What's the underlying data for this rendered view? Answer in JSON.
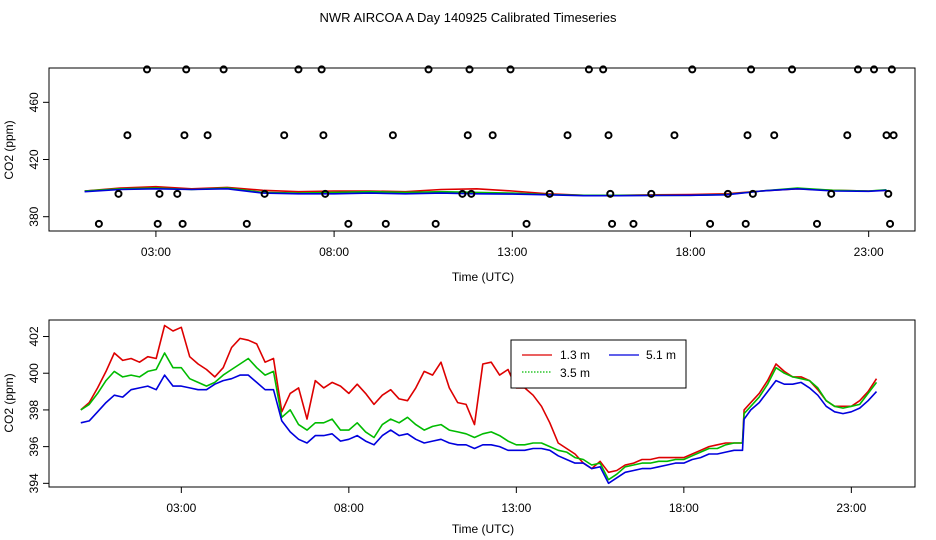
{
  "chart_data": [
    {
      "type": "scatter+line",
      "title": "NWR AIRCOA A  Day 140925  Calibrated Timeseries",
      "xlabel": "Time (UTC)",
      "ylabel": "CO2 (ppm)",
      "xlim": [
        0,
        24.3
      ],
      "ylim": [
        370,
        484
      ],
      "xticks": [
        {
          "v": 3,
          "label": "03:00"
        },
        {
          "v": 8,
          "label": "08:00"
        },
        {
          "v": 13,
          "label": "13:00"
        },
        {
          "v": 18,
          "label": "18:00"
        },
        {
          "v": 23,
          "label": "23:00"
        }
      ],
      "yticks": [
        {
          "v": 380,
          "label": "380"
        },
        {
          "v": 420,
          "label": "420"
        },
        {
          "v": 460,
          "label": "460"
        }
      ],
      "series": [
        {
          "name": "1.3 m",
          "color": "#dd0000",
          "x": [
            1,
            2,
            3,
            4,
            5,
            6,
            7,
            8,
            9,
            10,
            11,
            12,
            13,
            14,
            15,
            16,
            17,
            18,
            19,
            20,
            21,
            22,
            23,
            23.5
          ],
          "y": [
            398,
            400,
            401,
            399.5,
            400.5,
            398.5,
            397.5,
            398,
            398,
            397.5,
            399,
            399.5,
            398,
            396,
            395,
            395,
            395.3,
            395.5,
            396,
            398,
            399.5,
            398.5,
            398,
            398.5
          ]
        },
        {
          "name": "3.5 m",
          "color": "#00bb00",
          "x": [
            1,
            2,
            3,
            4,
            5,
            6,
            7,
            8,
            9,
            10,
            11,
            12,
            13,
            14,
            15,
            16,
            17,
            18,
            19,
            20,
            21,
            22,
            23,
            23.5
          ],
          "y": [
            398,
            399.5,
            400,
            399,
            400,
            397,
            396.5,
            397,
            397.5,
            397,
            397.5,
            397,
            396.5,
            395.5,
            395,
            395,
            395,
            395,
            395.5,
            398,
            400,
            398.5,
            398,
            398.8
          ]
        },
        {
          "name": "5.1 m",
          "color": "#0000dd",
          "x": [
            1,
            2,
            3,
            4,
            5,
            6,
            7,
            8,
            9,
            10,
            11,
            12,
            13,
            14,
            15,
            16,
            17,
            18,
            19,
            20,
            21,
            22,
            23,
            23.5
          ],
          "y": [
            397.5,
            399,
            399.5,
            399,
            399.5,
            396.5,
            396,
            396,
            396.5,
            396,
            396.5,
            396,
            395.8,
            395.3,
            394.7,
            394.7,
            394.8,
            395,
            395.3,
            398,
            399.5,
            398,
            397.8,
            398.5
          ]
        }
      ],
      "points": {
        "color": "#000000",
        "x": [
          1.4,
          1.95,
          2.2,
          2.75,
          3.05,
          3.1,
          3.6,
          3.75,
          3.8,
          3.85,
          4.45,
          4.9,
          5.55,
          6.05,
          6.6,
          7.0,
          7.65,
          7.7,
          7.75,
          8.4,
          9.45,
          9.65,
          10.65,
          10.85,
          11.6,
          11.75,
          11.8,
          11.85,
          12.45,
          12.95,
          13.4,
          14.05,
          14.55,
          15.15,
          15.55,
          15.7,
          15.75,
          15.8,
          16.4,
          16.9,
          17.55,
          18.05,
          18.55,
          19.05,
          19.55,
          19.6,
          19.7,
          19.75,
          20.35,
          20.85,
          21.55,
          21.95,
          22.4,
          22.7,
          23.15,
          23.5,
          23.55,
          23.6,
          23.65,
          23.7
        ],
        "y": [
          375,
          396,
          437,
          483,
          375,
          396,
          396,
          375,
          437,
          483,
          437,
          483,
          375,
          396,
          437,
          483,
          483,
          437,
          396,
          375,
          375,
          437,
          483,
          375,
          396,
          437,
          483,
          396,
          437,
          483,
          375,
          396,
          437,
          483,
          483,
          437,
          396,
          375,
          375,
          396,
          437,
          483,
          375,
          396,
          375,
          437,
          483,
          396,
          437,
          483,
          375,
          396,
          437,
          483,
          483,
          437,
          396,
          375,
          483,
          437
        ]
      }
    },
    {
      "type": "line",
      "title": "",
      "xlabel": "Time (UTC)",
      "ylabel": "CO2 (ppm)",
      "xlim": [
        -0.95,
        24.9
      ],
      "ylim": [
        393.8,
        402.9
      ],
      "xticks": [
        {
          "v": 3,
          "label": "03:00"
        },
        {
          "v": 8,
          "label": "08:00"
        },
        {
          "v": 13,
          "label": "13:00"
        },
        {
          "v": 18,
          "label": "18:00"
        },
        {
          "v": 23,
          "label": "23:00"
        }
      ],
      "yticks": [
        {
          "v": 394,
          "label": "394"
        },
        {
          "v": 396,
          "label": "396"
        },
        {
          "v": 398,
          "label": "398"
        },
        {
          "v": 400,
          "label": "400"
        },
        {
          "v": 402,
          "label": "402"
        }
      ],
      "legend": {
        "position": "top-center",
        "entries": [
          "1.3 m",
          "3.5 m",
          "5.1 m"
        ]
      },
      "series": [
        {
          "name": "1.3 m",
          "color": "#dd0000",
          "x": [
            0,
            0.25,
            0.5,
            0.75,
            1,
            1.25,
            1.5,
            1.75,
            2,
            2.25,
            2.5,
            2.75,
            3,
            3.25,
            3.5,
            3.75,
            4,
            4.25,
            4.5,
            4.75,
            5,
            5.25,
            5.5,
            5.75,
            6,
            6.25,
            6.5,
            6.75,
            7,
            7.25,
            7.5,
            7.75,
            8,
            8.25,
            8.5,
            8.75,
            9,
            9.25,
            9.5,
            9.75,
            10,
            10.25,
            10.5,
            10.75,
            11,
            11.25,
            11.5,
            11.75,
            12,
            12.25,
            12.5,
            12.75,
            13,
            13.25,
            13.5,
            13.75,
            14,
            14.25,
            14.5,
            14.75,
            15,
            15.25,
            15.5,
            15.75,
            16,
            16.25,
            16.5,
            16.75,
            17,
            17.25,
            17.5,
            17.75,
            18,
            18.25,
            18.5,
            18.75,
            19,
            19.25,
            19.5,
            19.75,
            19.8,
            20,
            20.25,
            20.5,
            20.75,
            21,
            21.25,
            21.5,
            21.75,
            22,
            22.25,
            22.5,
            22.75,
            23,
            23.25,
            23.5,
            23.75
          ],
          "y": [
            398,
            398.4,
            399.2,
            400.1,
            401.1,
            400.7,
            400.8,
            400.6,
            400.9,
            400.8,
            402.6,
            402.3,
            402.5,
            400.9,
            400.5,
            400.2,
            399.8,
            400.3,
            401.4,
            401.9,
            401.8,
            401.6,
            400.6,
            400.8,
            397.9,
            398.9,
            399.2,
            397.5,
            399.6,
            399.2,
            399.5,
            399.3,
            398.9,
            399.4,
            398.9,
            398.3,
            398.8,
            399.1,
            398.6,
            398.5,
            399.2,
            400.1,
            399.9,
            400.6,
            399.2,
            398.4,
            398.3,
            397.2,
            400.5,
            400.6,
            399.9,
            400.2,
            399.2,
            399.2,
            398.8,
            398.2,
            397.3,
            396.2,
            395.9,
            395.6,
            395.1,
            394.8,
            395.2,
            394.6,
            394.7,
            395,
            395.1,
            395.3,
            395.3,
            395.4,
            395.4,
            395.4,
            395.4,
            395.6,
            395.8,
            396,
            396.1,
            396.2,
            396.2,
            396.2,
            398,
            398.4,
            398.9,
            399.6,
            400.5,
            400.1,
            399.8,
            399.8,
            399.6,
            399.1,
            398.5,
            398.2,
            398.2,
            398.2,
            398.5,
            399,
            399.7
          ]
        },
        {
          "name": "3.5 m",
          "color": "#00bb00",
          "x": [
            0,
            0.25,
            0.5,
            0.75,
            1,
            1.25,
            1.5,
            1.75,
            2,
            2.25,
            2.5,
            2.75,
            3,
            3.25,
            3.5,
            3.75,
            4,
            4.25,
            4.5,
            4.75,
            5,
            5.25,
            5.5,
            5.75,
            6,
            6.25,
            6.5,
            6.75,
            7,
            7.25,
            7.5,
            7.75,
            8,
            8.25,
            8.5,
            8.75,
            9,
            9.25,
            9.5,
            9.75,
            10,
            10.25,
            10.5,
            10.75,
            11,
            11.25,
            11.5,
            11.75,
            12,
            12.25,
            12.5,
            12.75,
            13,
            13.25,
            13.5,
            13.75,
            14,
            14.25,
            14.5,
            14.75,
            15,
            15.25,
            15.5,
            15.75,
            16,
            16.25,
            16.5,
            16.75,
            17,
            17.25,
            17.5,
            17.75,
            18,
            18.25,
            18.5,
            18.75,
            19,
            19.25,
            19.5,
            19.75,
            19.8,
            20,
            20.25,
            20.5,
            20.75,
            21,
            21.25,
            21.5,
            21.75,
            22,
            22.25,
            22.5,
            22.75,
            23,
            23.25,
            23.5,
            23.75
          ],
          "y": [
            398,
            398.3,
            398.9,
            399.6,
            400.1,
            399.8,
            399.9,
            399.8,
            400.1,
            400.2,
            401.1,
            400.3,
            400.3,
            399.7,
            399.5,
            399.3,
            399.5,
            399.9,
            400.2,
            400.5,
            400.8,
            400.3,
            399.9,
            400.1,
            397.6,
            398,
            397.2,
            396.9,
            397.3,
            397.3,
            397.5,
            396.9,
            396.9,
            397.3,
            396.8,
            396.5,
            397.2,
            397.5,
            397.3,
            397.6,
            397.2,
            396.9,
            397.1,
            397.2,
            396.9,
            396.8,
            396.7,
            396.5,
            396.7,
            396.8,
            396.6,
            396.3,
            396.1,
            396.1,
            396.2,
            396.2,
            396,
            395.8,
            395.7,
            395.4,
            395.3,
            395,
            395.1,
            394.2,
            394.5,
            394.9,
            395,
            395.1,
            395.1,
            395.2,
            395.2,
            395.3,
            395.3,
            395.5,
            395.7,
            395.9,
            395.9,
            396.1,
            396.2,
            396.2,
            397.8,
            398.2,
            398.7,
            399.4,
            400.3,
            400,
            399.8,
            399.7,
            399.6,
            399.2,
            398.5,
            398.2,
            398.1,
            398.2,
            398.3,
            398.9,
            399.5
          ]
        },
        {
          "name": "5.1 m",
          "color": "#0000dd",
          "x": [
            0,
            0.25,
            0.5,
            0.75,
            1,
            1.25,
            1.5,
            1.75,
            2,
            2.25,
            2.5,
            2.75,
            3,
            3.25,
            3.5,
            3.75,
            4,
            4.25,
            4.5,
            4.75,
            5,
            5.25,
            5.5,
            5.75,
            6,
            6.25,
            6.5,
            6.75,
            7,
            7.25,
            7.5,
            7.75,
            8,
            8.25,
            8.5,
            8.75,
            9,
            9.25,
            9.5,
            9.75,
            10,
            10.25,
            10.5,
            10.75,
            11,
            11.25,
            11.5,
            11.75,
            12,
            12.25,
            12.5,
            12.75,
            13,
            13.25,
            13.5,
            13.75,
            14,
            14.25,
            14.5,
            14.75,
            15,
            15.25,
            15.5,
            15.75,
            16,
            16.25,
            16.5,
            16.75,
            17,
            17.25,
            17.5,
            17.75,
            18,
            18.25,
            18.5,
            18.75,
            19,
            19.25,
            19.5,
            19.75,
            19.8,
            20,
            20.25,
            20.5,
            20.75,
            21,
            21.25,
            21.5,
            21.75,
            22,
            22.25,
            22.5,
            22.75,
            23,
            23.25,
            23.5,
            23.75
          ],
          "y": [
            397.3,
            397.4,
            397.9,
            398.4,
            398.8,
            398.7,
            399.1,
            399.2,
            399.3,
            399.1,
            399.9,
            399.3,
            399.3,
            399.2,
            399.1,
            399.1,
            399.4,
            399.6,
            399.7,
            399.9,
            399.9,
            399.5,
            399.1,
            399.1,
            397.4,
            396.8,
            396.4,
            396.2,
            396.6,
            396.6,
            396.7,
            396.3,
            396.4,
            396.6,
            396.3,
            396.1,
            396.6,
            396.9,
            396.6,
            396.7,
            396.4,
            396.2,
            396.3,
            396.4,
            396.2,
            396.1,
            396.1,
            395.9,
            396.1,
            396.1,
            396,
            395.8,
            395.8,
            395.8,
            395.9,
            395.9,
            395.8,
            395.5,
            395.3,
            395.1,
            395.1,
            394.8,
            394.9,
            394,
            394.3,
            394.6,
            394.7,
            394.8,
            394.8,
            394.9,
            395,
            395.1,
            395.1,
            395.3,
            395.4,
            395.6,
            395.6,
            395.7,
            395.8,
            395.8,
            397.5,
            398,
            398.4,
            399,
            399.6,
            399.4,
            399.4,
            399.5,
            399.2,
            398.8,
            398.2,
            397.9,
            397.8,
            397.9,
            398.1,
            398.5,
            399
          ]
        }
      ]
    }
  ]
}
